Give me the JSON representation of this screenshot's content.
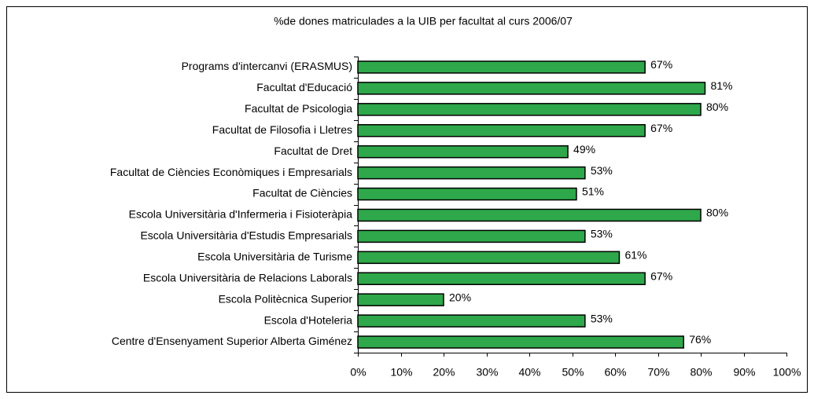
{
  "chart_data": {
    "type": "bar",
    "orientation": "horizontal",
    "title": "%de dones matriculades a la UIB per facultat al curs 2006/07",
    "categories": [
      "Programs d'intercanvi (ERASMUS)",
      "Facultat d'Educació",
      "Facultat de Psicologia",
      "Facultat de Filosofia i Lletres",
      "Facultat de Dret",
      "Facultat de Ciències Econòmiques i Empresarials",
      "Facultat de Ciències",
      "Escola Universitària d'Infermeria i Fisioteràpia",
      "Escola Universitària d'Estudis Empresarials",
      "Escola Universitària de Turisme",
      "Escola Universitària de Relacions Laborals",
      "Escola Politècnica Superior",
      "Escola d'Hoteleria",
      "Centre d'Ensenyament Superior Alberta Giménez"
    ],
    "values": [
      67,
      81,
      80,
      67,
      49,
      53,
      51,
      80,
      53,
      61,
      67,
      20,
      53,
      76
    ],
    "value_labels": [
      "67%",
      "81%",
      "80%",
      "67%",
      "49%",
      "53%",
      "51%",
      "80%",
      "53%",
      "61%",
      "67%",
      "20%",
      "53%",
      "76%"
    ],
    "color": "#2ea84a",
    "xlim": [
      0,
      100
    ],
    "xticks": [
      {
        "value": 0,
        "label": "0%"
      },
      {
        "value": 10,
        "label": "10%"
      },
      {
        "value": 20,
        "label": "20%"
      },
      {
        "value": 30,
        "label": "30%"
      },
      {
        "value": 40,
        "label": "40%"
      },
      {
        "value": 50,
        "label": "50%"
      },
      {
        "value": 60,
        "label": "60%"
      },
      {
        "value": 70,
        "label": "70%"
      },
      {
        "value": 80,
        "label": "80%"
      },
      {
        "value": 90,
        "label": "90%"
      },
      {
        "value": 100,
        "label": "100%"
      }
    ],
    "grid": false
  }
}
